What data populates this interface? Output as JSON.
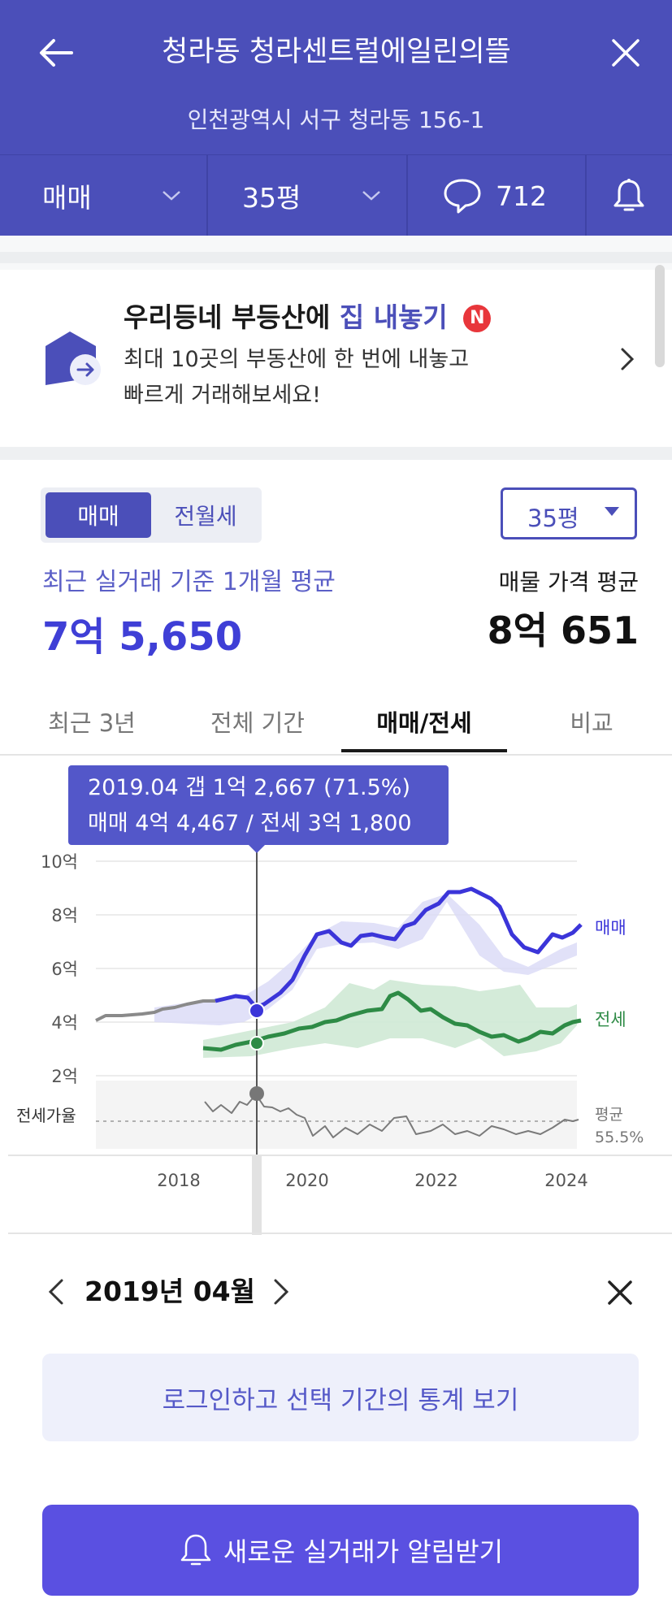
{
  "header": {
    "title": "청라동 청라센트럴에일린의뜰",
    "address": "인천광역시 서구 청라동 156-1",
    "deal_type": "매매",
    "size": "35평",
    "comment_count": "712"
  },
  "promo": {
    "title_prefix": "우리등네 부등산에 ",
    "title_highlight": "집 내놓기",
    "badge": "N",
    "desc_line1": "최대 10곳의 부동산에 한 번에 내놓고",
    "desc_line2": "빠르게 거래해보세요!"
  },
  "price": {
    "segment": [
      "매매",
      "전월세"
    ],
    "size_select": "35평",
    "avg_label": "최근 실거래 기준 1개월 평균",
    "avg_value": "7억 5,650",
    "listing_label": "매물 가격 평균",
    "listing_value": "8억 651"
  },
  "tabs": [
    "최근 3년",
    "전체 기간",
    "매매/전세",
    "비교"
  ],
  "tooltip": {
    "line1": "2019.04  갭 1억 2,667 (71.5%)",
    "line2": "매매 4억 4,467 / 전세 3억 1,800"
  },
  "chart_data": {
    "type": "line",
    "ylabels": [
      "10억",
      "8억",
      "6억",
      "4억",
      "2억"
    ],
    "xlabels": [
      "2018",
      "2020",
      "2022",
      "2024"
    ],
    "ratio_label": "전세가율",
    "avg_label": "평균",
    "avg_value": "55.5%",
    "series": [
      {
        "name": "매매",
        "color": "#3b35d9"
      },
      {
        "name": "전세",
        "color": "#2e8b46"
      }
    ]
  },
  "month": {
    "label": "2019년 04월"
  },
  "login_cta": "로그인하고 선택 기간의 통계 보기",
  "alert_cta": "새로운 실거래가 알림받기",
  "colors": {
    "header": "#4b4fb9",
    "accent": "#5a50e1",
    "sale": "#3b35d9",
    "rent": "#2e8b46"
  }
}
